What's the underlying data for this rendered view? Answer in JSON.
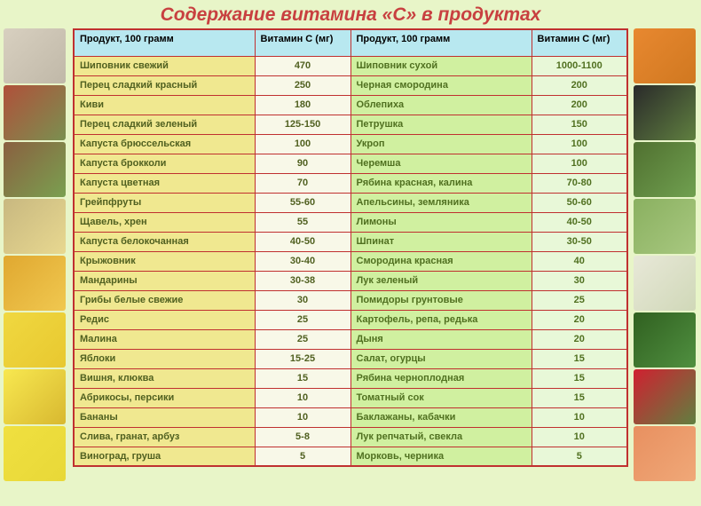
{
  "title": "Содержание витамина «С» в продуктах",
  "headers": {
    "product": "Продукт, 100 грамм",
    "vitamin": "Витамин С (мг)"
  },
  "table_style": {
    "border_color": "#c03030",
    "header_bg": "#b8e8f0",
    "left_product_bg": "#f0e890",
    "left_value_bg": "#f8f8e8",
    "right_product_bg": "#d0f0a0",
    "right_value_bg": "#e8f8d8",
    "font_size": 11
  },
  "rows": [
    {
      "lp": "Шиповник свежий",
      "lv": "470",
      "rp": "Шиповник сухой",
      "rv": "1000-1100"
    },
    {
      "lp": "Перец сладкий красный",
      "lv": "250",
      "rp": "Черная смородина",
      "rv": "200"
    },
    {
      "lp": "Киви",
      "lv": "180",
      "rp": "Облепиха",
      "rv": "200"
    },
    {
      "lp": "Перец сладкий зеленый",
      "lv": "125-150",
      "rp": "Петрушка",
      "rv": "150"
    },
    {
      "lp": "Капуста брюссельская",
      "lv": "100",
      "rp": "Укроп",
      "rv": "100"
    },
    {
      "lp": "Капуста брокколи",
      "lv": "90",
      "rp": "Черемша",
      "rv": "100"
    },
    {
      "lp": "Капуста цветная",
      "lv": "70",
      "rp": "Рябина красная, калина",
      "rv": "70-80"
    },
    {
      "lp": "Грейпфруты",
      "lv": "55-60",
      "rp": "Апельсины, земляника",
      "rv": "50-60"
    },
    {
      "lp": "Щавель, хрен",
      "lv": "55",
      "rp": "Лимоны",
      "rv": "40-50"
    },
    {
      "lp": "Капуста белокочанная",
      "lv": "40-50",
      "rp": "Шпинат",
      "rv": "30-50"
    },
    {
      "lp": "Крыжовник",
      "lv": "30-40",
      "rp": "Смородина красная",
      "rv": "40"
    },
    {
      "lp": "Мандарины",
      "lv": "30-38",
      "rp": "Лук зеленый",
      "rv": "30"
    },
    {
      "lp": "Грибы белые свежие",
      "lv": "30",
      "rp": "Помидоры грунтовые",
      "rv": "25"
    },
    {
      "lp": "Редис",
      "lv": "25",
      "rp": "Картофель, репа, редька",
      "rv": "20"
    },
    {
      "lp": "Малина",
      "lv": "25",
      "rp": "Дыня",
      "rv": "20"
    },
    {
      "lp": "Яблоки",
      "lv": "15-25",
      "rp": "Салат, огурцы",
      "rv": "15"
    },
    {
      "lp": "Вишня, клюква",
      "lv": "15",
      "rp": "Рябина черноплодная",
      "rv": "15"
    },
    {
      "lp": "Абрикосы, персики",
      "lv": "10",
      "rp": "Томатный сок",
      "rv": "15"
    },
    {
      "lp": "Бананы",
      "lv": "10",
      "rp": "Баклажаны, кабачки",
      "rv": "10"
    },
    {
      "lp": "Слива, гранат, арбуз",
      "lv": "5-8",
      "rp": "Лук репчатый, свекла",
      "rv": "10"
    },
    {
      "lp": "Виноград, груша",
      "lv": "5",
      "rp": "Морковь, черника",
      "rv": "5"
    }
  ],
  "side_images": {
    "left": [
      "anatomy",
      "rosehip",
      "kiwi",
      "gooseberry",
      "tangerine",
      "apple",
      "lemon",
      "banana"
    ],
    "right": [
      "seabuckthorn",
      "blackcurrant",
      "parsley",
      "brussels",
      "cauliflower",
      "broccoli",
      "strawberry",
      "grapefruit"
    ]
  }
}
